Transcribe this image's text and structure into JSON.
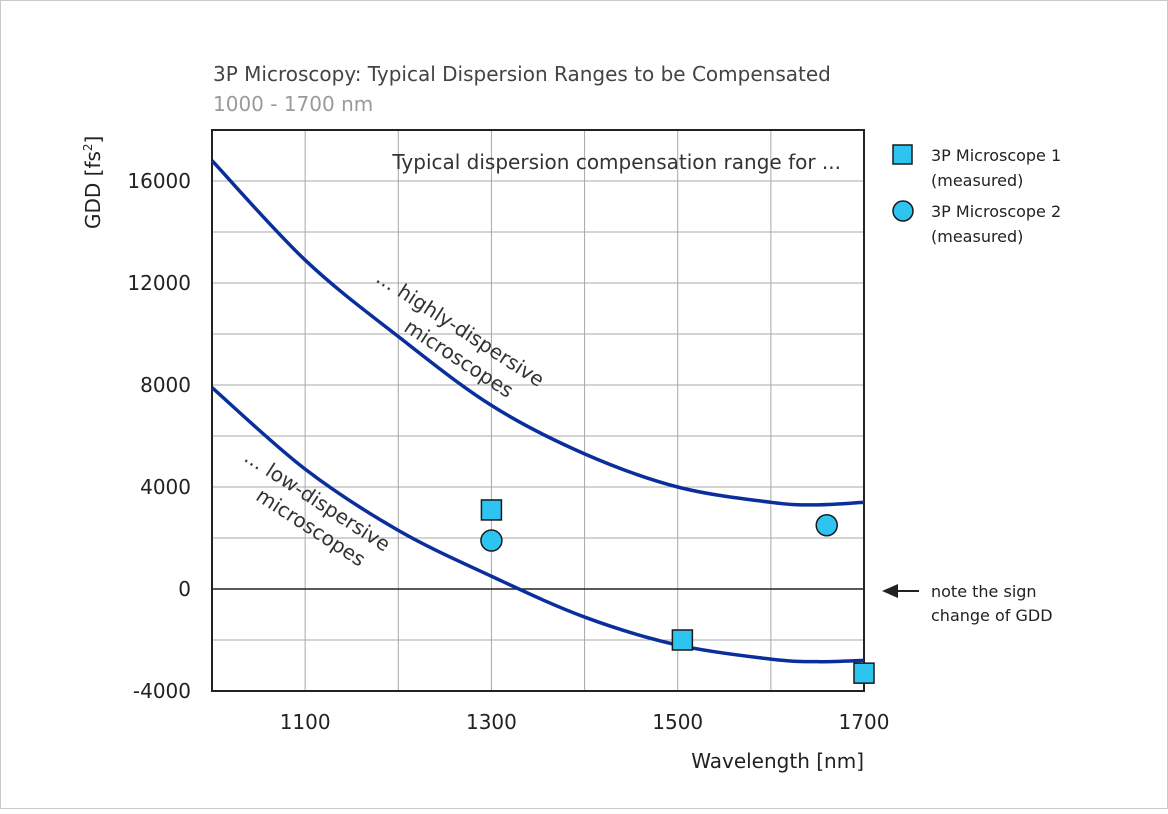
{
  "chart_data": {
    "type": "line",
    "title": "3P Microscopy: Typical Dispersion Ranges to be Compensated",
    "subtitle": "1000 - 1700 nm",
    "xlabel": "Wavelength [nm]",
    "ylabel_main": "GDD [fs",
    "ylabel_sup": "2",
    "ylabel_close": "]",
    "xlim": [
      1000,
      1700
    ],
    "ylim": [
      -4000,
      18000
    ],
    "x_ticks": [
      1100,
      1300,
      1500,
      1700
    ],
    "y_ticks": [
      -4000,
      0,
      4000,
      8000,
      12000,
      16000
    ],
    "x_tick_labels": [
      "1100",
      "1300",
      "1500",
      "1700"
    ],
    "y_tick_labels": [
      "-4000",
      "0",
      "4000",
      "8000",
      "12000",
      "16000"
    ],
    "grid": true,
    "legend_position": "right",
    "header_annotation": "Typical dispersion compensation range for ...",
    "series": [
      {
        "label_lines": [
          "... highly-dispersive",
          "microscopes"
        ],
        "color": "#0a2e9c",
        "x": [
          1000,
          1100,
          1200,
          1300,
          1400,
          1500,
          1600,
          1650,
          1700
        ],
        "y": [
          16800,
          12900,
          9900,
          7200,
          5300,
          4000,
          3400,
          3300,
          3400
        ]
      },
      {
        "label_lines": [
          "... low-dispersive",
          "microscopes"
        ],
        "color": "#0a2e9c",
        "x": [
          1000,
          1100,
          1200,
          1300,
          1400,
          1500,
          1600,
          1650,
          1700
        ],
        "y": [
          7900,
          4700,
          2300,
          500,
          -1100,
          -2200,
          -2750,
          -2850,
          -2800
        ]
      }
    ],
    "points": [
      {
        "legend": [
          "3P Microscope 1",
          "(measured)"
        ],
        "marker": "square",
        "color": "#2ec4f2",
        "x": [
          1300,
          1505,
          1700
        ],
        "y": [
          3100,
          -2000,
          -3300
        ]
      },
      {
        "legend": [
          "3P Microscope 2",
          "(measured)"
        ],
        "marker": "circle",
        "color": "#2ec4f2",
        "x": [
          1300,
          1660
        ],
        "y": [
          1900,
          2500
        ]
      }
    ],
    "note": [
      "note the sign",
      "change of GDD"
    ]
  }
}
